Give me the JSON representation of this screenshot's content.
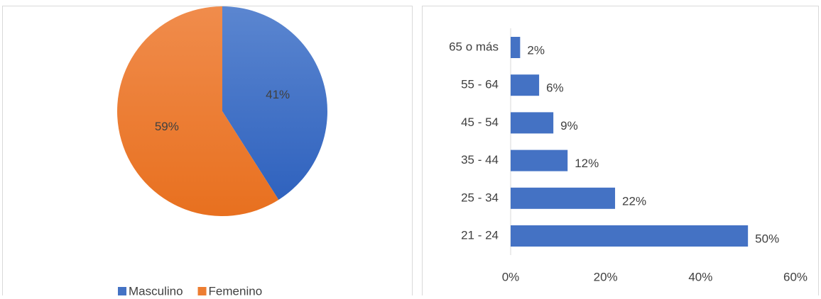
{
  "chart_data": [
    {
      "type": "pie",
      "categories": [
        "Masculino",
        "Femenino"
      ],
      "values": [
        41,
        59
      ],
      "value_labels": [
        "41%",
        "59%"
      ],
      "colors": [
        "#4472c4",
        "#ed7d31"
      ],
      "legend": "bottom"
    },
    {
      "type": "hbar",
      "categories": [
        "21 - 24",
        "25 - 34",
        "35 - 44",
        "45 - 54",
        "55 - 64",
        "65 o más"
      ],
      "values": [
        50,
        22,
        12,
        9,
        6,
        2
      ],
      "value_labels": [
        "50%",
        "22%",
        "12%",
        "9%",
        "6%",
        "2%"
      ],
      "color": "#4472c4",
      "xlim": [
        0,
        60
      ],
      "xticks": [
        {
          "value": 0,
          "label": "0%"
        },
        {
          "value": 20,
          "label": "20%"
        },
        {
          "value": 40,
          "label": "40%"
        },
        {
          "value": 60,
          "label": "60%"
        }
      ]
    }
  ]
}
